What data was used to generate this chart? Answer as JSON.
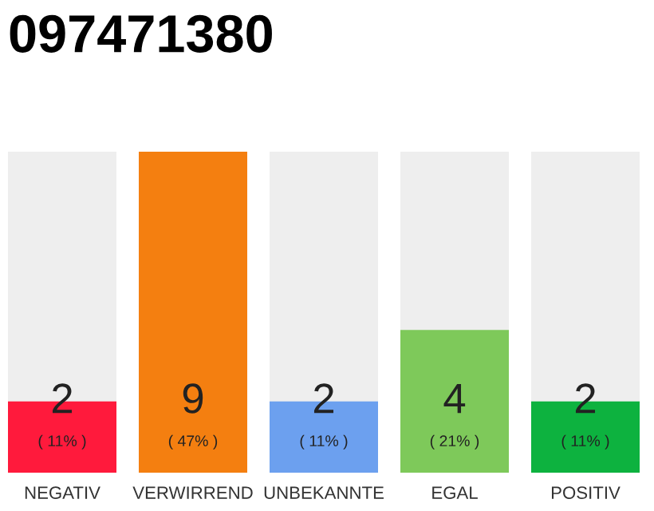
{
  "chart_data": {
    "type": "bar",
    "title": "097471380",
    "categories": [
      "NEGATIV",
      "VERWIRREND",
      "UNBEKANNTE",
      "EGAL",
      "POSITIV"
    ],
    "values": [
      2,
      9,
      2,
      4,
      2
    ],
    "colors": [
      "#ff1a3c",
      "#f47f10",
      "#6ca0ef",
      "#7ec95a",
      "#0db23f"
    ],
    "data_labels": true,
    "annotations": [
      "( 11% )",
      "( 47% )",
      "( 11% )",
      "( 21% )",
      "( 11% )"
    ],
    "tick_labels": "x",
    "grid": false,
    "legend": false
  }
}
